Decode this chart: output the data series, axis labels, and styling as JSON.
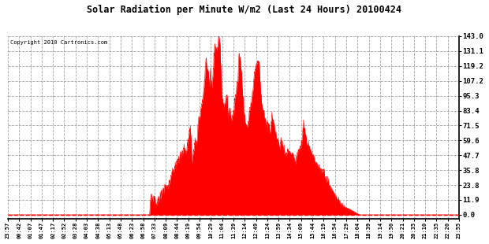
{
  "title": "Solar Radiation per Minute W/m2 (Last 24 Hours) 20100424",
  "copyright": "Copyright 2010 Cartronics.com",
  "yticks": [
    0.0,
    11.9,
    23.8,
    35.8,
    47.7,
    59.6,
    71.5,
    83.4,
    95.3,
    107.2,
    119.2,
    131.1,
    143.0
  ],
  "ymax": 143.0,
  "ymin": 0.0,
  "fill_color": "#FF0000",
  "line_color": "#FF0000",
  "bg_color": "#FFFFFF",
  "grid_color": "#999999",
  "baseline_color": "#FF0000",
  "xtick_labels": [
    "23:57",
    "00:42",
    "01:07",
    "01:47",
    "02:17",
    "02:52",
    "03:28",
    "04:03",
    "04:38",
    "05:13",
    "05:48",
    "06:23",
    "06:58",
    "07:33",
    "08:09",
    "08:44",
    "09:19",
    "09:54",
    "10:29",
    "11:04",
    "11:39",
    "12:14",
    "12:49",
    "13:24",
    "13:59",
    "14:34",
    "15:09",
    "15:44",
    "16:19",
    "16:54",
    "17:29",
    "18:04",
    "18:39",
    "19:14",
    "19:50",
    "20:21",
    "20:35",
    "21:10",
    "22:35",
    "22:20",
    "23:55"
  ],
  "num_points": 1440
}
